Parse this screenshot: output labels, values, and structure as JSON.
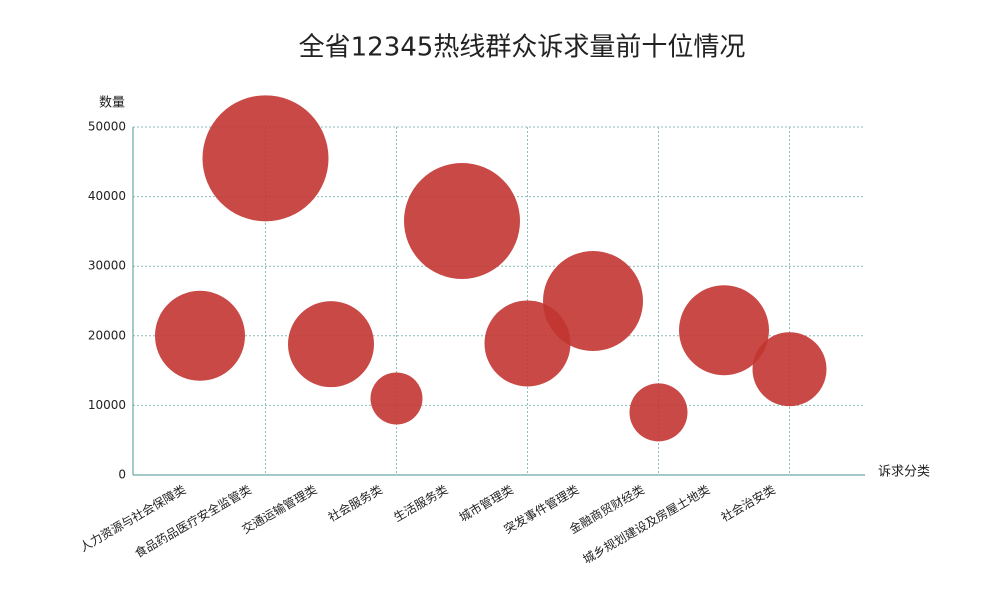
{
  "chart_data": {
    "type": "bubble",
    "title": "全省12345热线群众诉求量前十位情况",
    "y_label": "数量",
    "x_label": "诉求分类",
    "categories": [
      "人力资源与社会保障类",
      "食品药品医疗安全监管类",
      "交通运输管理类",
      "社会服务类",
      "生活服务类",
      "城市管理类",
      "突发事件管理类",
      "金融商贸财经类",
      "城乡规划建设及房屋土地类",
      "社会治安类"
    ],
    "values": [
      20000,
      45500,
      18800,
      11000,
      36500,
      18900,
      25000,
      9000,
      20800,
      15200
    ],
    "sizes": [
      45,
      63,
      43,
      26,
      58,
      43,
      50,
      29,
      45,
      37
    ],
    "color": "#c23531",
    "ylim": [
      0,
      50000
    ],
    "yticks": [
      0,
      10000,
      20000,
      30000,
      40000,
      50000
    ],
    "grid": true
  }
}
